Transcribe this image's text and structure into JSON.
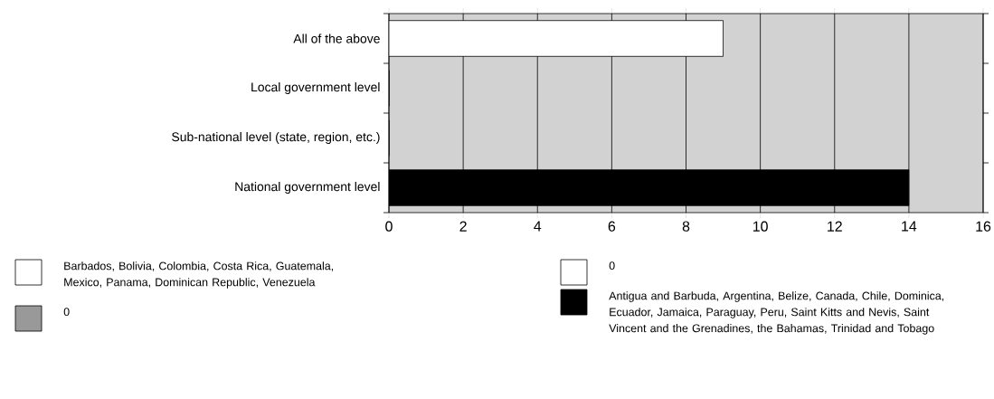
{
  "chart_data": {
    "type": "bar",
    "orientation": "horizontal",
    "categories": [
      "All of the above",
      "Local government level",
      "Sub-national level (state, region, etc.)",
      "National government level"
    ],
    "series": [
      {
        "name": "Barbados, Bolivia, Colombia, Costa Rica, Guatemala, Mexico, Panama, Dominican Republic, Venezuela",
        "color": "#ffffff",
        "values": [
          9,
          null,
          null,
          null
        ]
      },
      {
        "name": "0",
        "color": "#999999",
        "values": [
          null,
          0,
          null,
          null
        ]
      },
      {
        "name": "0",
        "color": "#ffffff",
        "values": [
          null,
          null,
          0,
          null
        ]
      },
      {
        "name": "Antigua and Barbuda, Argentina, Belize, Canada, Chile, Dominica, Ecuador, Jamaica, Paraguay, Peru, Saint Kitts and Nevis, Saint Vincent and the Grenadines, the Bahamas, Trinidad and Tobago",
        "color": "#000000",
        "values": [
          null,
          null,
          null,
          14
        ]
      }
    ],
    "xlim": [
      0,
      16
    ],
    "xticks": [
      0,
      2,
      4,
      6,
      8,
      10,
      12,
      14,
      16
    ],
    "grid": "x",
    "legend": "bottom"
  }
}
